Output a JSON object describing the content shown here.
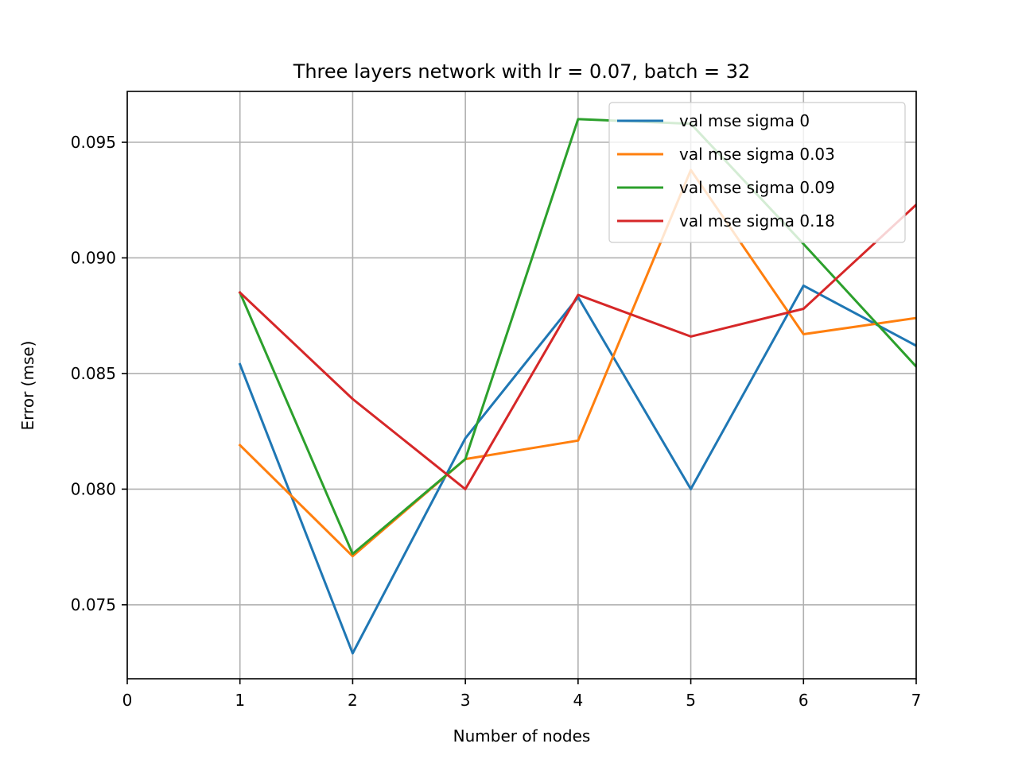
{
  "chart_data": {
    "type": "line",
    "title": "Three layers network with lr = 0.07, batch = 32",
    "xlabel": "Number of nodes",
    "ylabel": "Error (mse)",
    "xlim": [
      0,
      7
    ],
    "ylim": [
      0.0718,
      0.0972
    ],
    "xticks": [
      "0",
      "1",
      "2",
      "3",
      "4",
      "5",
      "6",
      "7"
    ],
    "yticks": [
      "0.075",
      "0.080",
      "0.085",
      "0.090",
      "0.095"
    ],
    "grid": true,
    "legend_position": "upper right",
    "x": [
      1,
      2,
      3,
      4,
      5,
      6,
      7
    ],
    "series": [
      {
        "name": "val mse sigma 0",
        "color": "#1f77b4",
        "values": [
          0.0854,
          0.0729,
          0.0822,
          0.0883,
          0.08,
          0.0888,
          0.0862
        ]
      },
      {
        "name": "val mse sigma 0.03",
        "color": "#ff7f0e",
        "values": [
          0.0819,
          0.0771,
          0.0813,
          0.0821,
          0.0938,
          0.0867,
          0.0874
        ]
      },
      {
        "name": "val mse sigma 0.09",
        "color": "#2ca02c",
        "values": [
          0.0885,
          0.0772,
          0.0813,
          0.096,
          0.0958,
          0.0906,
          0.0853
        ]
      },
      {
        "name": "val mse sigma 0.18",
        "color": "#d62728",
        "values": [
          0.0885,
          0.0839,
          0.08,
          0.0884,
          0.0866,
          0.0878,
          0.0923
        ]
      }
    ]
  }
}
